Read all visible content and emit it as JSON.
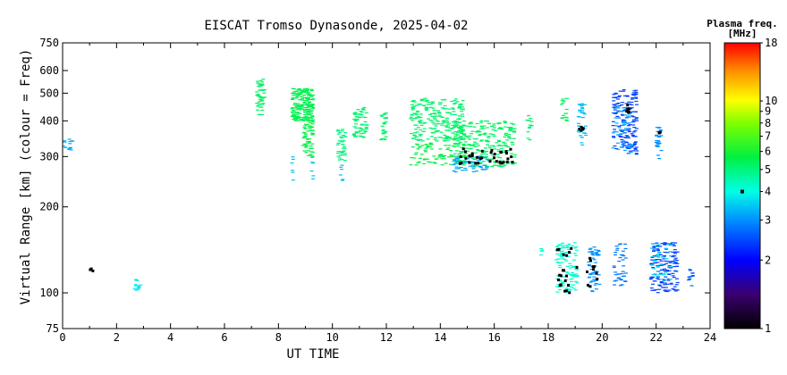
{
  "chart_data": {
    "type": "scatter",
    "title": "EISCAT Tromso Dynasonde, 2025-04-02",
    "xlabel": "UT TIME",
    "ylabel": "Virtual Range [km] (colour = Freq)",
    "x_ticks": [
      "0",
      "2",
      "4",
      "6",
      "8",
      "10",
      "12",
      "14",
      "16",
      "18",
      "20",
      "22",
      "24"
    ],
    "y_ticks": [
      "75",
      "100",
      "200",
      "300",
      "400",
      "500",
      "600",
      "750"
    ],
    "xlim": [
      0,
      24
    ],
    "ylim": [
      75,
      750
    ],
    "y_scale": "log",
    "grid": false,
    "colorbar": {
      "title_line1": "Plasma freq.",
      "title_line2": "[MHz]",
      "scale": "log",
      "range": [
        1,
        18
      ],
      "ticks": [
        "1",
        "2",
        "3",
        "4",
        "5",
        "6",
        "7",
        "8",
        "9",
        "10",
        "18"
      ],
      "marker_value": 4
    },
    "clusters": [
      {
        "x": [
          0.0,
          0.4
        ],
        "y": [
          310,
          345
        ],
        "f": 3.2,
        "n": 14
      },
      {
        "x": [
          1.0,
          1.15
        ],
        "y": [
          118,
          126
        ],
        "f": 1.0,
        "n": 3
      },
      {
        "x": [
          2.6,
          2.9
        ],
        "y": [
          102,
          112
        ],
        "f": 3.8,
        "n": 14
      },
      {
        "x": [
          7.2,
          7.5
        ],
        "y": [
          420,
          560
        ],
        "f": 5.3,
        "n": 50
      },
      {
        "x": [
          8.5,
          9.3
        ],
        "y": [
          400,
          520
        ],
        "f": 5.5,
        "n": 180
      },
      {
        "x": [
          8.9,
          9.3
        ],
        "y": [
          300,
          400
        ],
        "f": 5.6,
        "n": 60
      },
      {
        "x": [
          8.5,
          8.55
        ],
        "y": [
          245,
          310
        ],
        "f": 3.4,
        "n": 6
      },
      {
        "x": [
          9.2,
          9.3
        ],
        "y": [
          245,
          300
        ],
        "f": 3.4,
        "n": 6
      },
      {
        "x": [
          10.2,
          10.5
        ],
        "y": [
          290,
          380
        ],
        "f": 5.0,
        "n": 40
      },
      {
        "x": [
          10.3,
          10.4
        ],
        "y": [
          245,
          290
        ],
        "f": 3.4,
        "n": 6
      },
      {
        "x": [
          10.8,
          11.3
        ],
        "y": [
          350,
          450
        ],
        "f": 5.2,
        "n": 60
      },
      {
        "x": [
          11.8,
          12.0
        ],
        "y": [
          340,
          430
        ],
        "f": 5.2,
        "n": 25
      },
      {
        "x": [
          12.9,
          14.9
        ],
        "y": [
          340,
          480
        ],
        "f": 5.2,
        "n": 240
      },
      {
        "x": [
          12.9,
          14.9
        ],
        "y": [
          280,
          340
        ],
        "f": 5.6,
        "n": 80
      },
      {
        "x": [
          14.5,
          16.8
        ],
        "y": [
          275,
          400
        ],
        "f": 5.3,
        "n": 260
      },
      {
        "x": [
          14.5,
          15.8
        ],
        "y": [
          265,
          300
        ],
        "f": 3.2,
        "n": 70
      },
      {
        "x": [
          14.6,
          16.7
        ],
        "y": [
          283,
          320
        ],
        "f": 1.0,
        "n": 35
      },
      {
        "x": [
          17.2,
          17.4
        ],
        "y": [
          340,
          420
        ],
        "f": 5.2,
        "n": 14
      },
      {
        "x": [
          18.5,
          18.7
        ],
        "y": [
          400,
          480
        ],
        "f": 5.4,
        "n": 16
      },
      {
        "x": [
          19.1,
          19.4
        ],
        "y": [
          320,
          460
        ],
        "f": 3.4,
        "n": 35
      },
      {
        "x": [
          19.1,
          19.3
        ],
        "y": [
          370,
          390
        ],
        "f": 1.0,
        "n": 6
      },
      {
        "x": [
          20.4,
          21.3
        ],
        "y": [
          305,
          520
        ],
        "f": 2.4,
        "n": 150
      },
      {
        "x": [
          20.4,
          21.1
        ],
        "y": [
          310,
          450
        ],
        "f": 3.2,
        "n": 50
      },
      {
        "x": [
          20.9,
          21.0
        ],
        "y": [
          430,
          470
        ],
        "f": 1.0,
        "n": 6
      },
      {
        "x": [
          22.0,
          22.2
        ],
        "y": [
          295,
          380
        ],
        "f": 3.0,
        "n": 30
      },
      {
        "x": [
          22.1,
          22.2
        ],
        "y": [
          350,
          370
        ],
        "f": 1.0,
        "n": 3
      },
      {
        "x": [
          17.7,
          17.8
        ],
        "y": [
          135,
          145
        ],
        "f": 4.2,
        "n": 4
      },
      {
        "x": [
          18.3,
          19.1
        ],
        "y": [
          100,
          150
        ],
        "f": 4.2,
        "n": 120
      },
      {
        "x": [
          18.3,
          19.1
        ],
        "y": [
          100,
          145
        ],
        "f": 1.0,
        "n": 20
      },
      {
        "x": [
          19.5,
          19.9
        ],
        "y": [
          100,
          145
        ],
        "f": 3.0,
        "n": 50
      },
      {
        "x": [
          19.4,
          19.9
        ],
        "y": [
          103,
          135
        ],
        "f": 1.0,
        "n": 10
      },
      {
        "x": [
          20.4,
          20.9
        ],
        "y": [
          105,
          150
        ],
        "f": 2.8,
        "n": 40
      },
      {
        "x": [
          21.8,
          22.8
        ],
        "y": [
          100,
          150
        ],
        "f": 2.4,
        "n": 150
      },
      {
        "x": [
          21.8,
          22.6
        ],
        "y": [
          110,
          150
        ],
        "f": 3.6,
        "n": 40
      },
      {
        "x": [
          23.2,
          23.4
        ],
        "y": [
          104,
          124
        ],
        "f": 2.6,
        "n": 12
      }
    ]
  }
}
